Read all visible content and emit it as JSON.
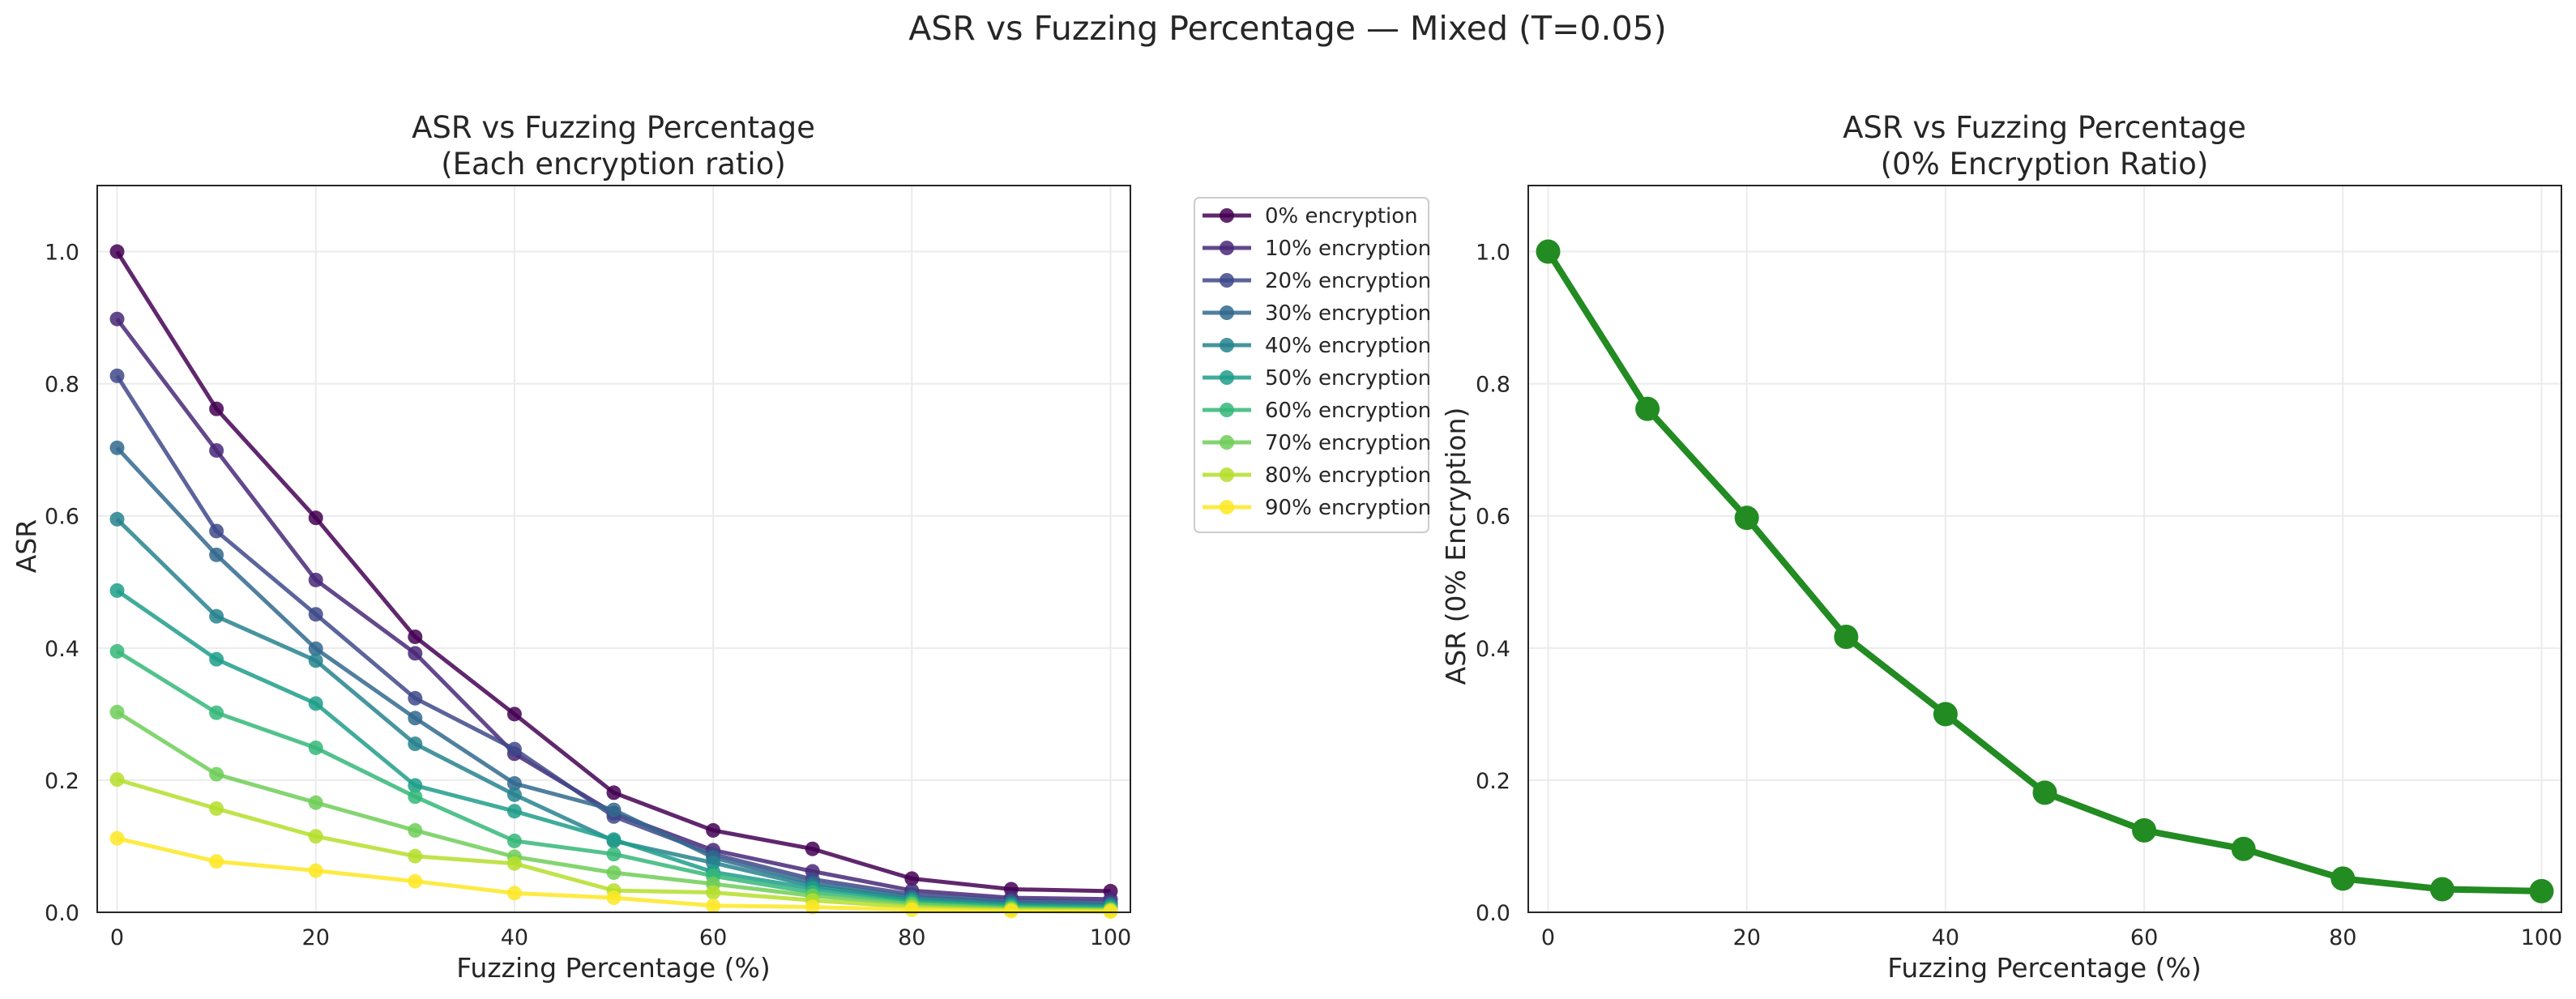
{
  "figure": {
    "suptitle": "ASR vs Fuzzing Percentage — Mixed (T=0.05)"
  },
  "chart_data": [
    {
      "type": "line",
      "title_line1": "ASR vs Fuzzing Percentage",
      "title_line2": "(Each encryption ratio)",
      "xlabel": "Fuzzing Percentage (%)",
      "ylabel": "ASR",
      "xlim": [
        -2,
        102
      ],
      "ylim": [
        0,
        1.1
      ],
      "xticks": [
        0,
        20,
        40,
        60,
        80,
        100
      ],
      "xtick_labels": [
        "0",
        "20",
        "40",
        "60",
        "80",
        "100"
      ],
      "yticks": [
        0,
        0.2,
        0.4,
        0.6,
        0.8,
        1.0
      ],
      "ytick_labels": [
        "0.0",
        "0.2",
        "0.4",
        "0.6",
        "0.8",
        "1.0"
      ],
      "grid": true,
      "legend_placement": "outside-upper-right",
      "x": [
        0,
        10,
        20,
        30,
        40,
        50,
        60,
        70,
        80,
        90,
        100
      ],
      "series": [
        {
          "name": "0% encryption",
          "color": "#440154",
          "values": [
            1.0,
            0.762,
            0.597,
            0.417,
            0.3,
            0.181,
            0.124,
            0.096,
            0.051,
            0.035,
            0.032
          ]
        },
        {
          "name": "10% encryption",
          "color": "#482878",
          "values": [
            0.898,
            0.699,
            0.503,
            0.392,
            0.24,
            0.15,
            0.094,
            0.062,
            0.033,
            0.022,
            0.02
          ]
        },
        {
          "name": "20% encryption",
          "color": "#3e4989",
          "values": [
            0.812,
            0.577,
            0.451,
            0.324,
            0.247,
            0.145,
            0.088,
            0.05,
            0.027,
            0.018,
            0.015
          ]
        },
        {
          "name": "30% encryption",
          "color": "#31688e",
          "values": [
            0.703,
            0.541,
            0.399,
            0.294,
            0.195,
            0.155,
            0.083,
            0.044,
            0.023,
            0.015,
            0.012
          ]
        },
        {
          "name": "40% encryption",
          "color": "#26828e",
          "values": [
            0.595,
            0.448,
            0.381,
            0.255,
            0.178,
            0.108,
            0.075,
            0.04,
            0.02,
            0.012,
            0.01
          ]
        },
        {
          "name": "50% encryption",
          "color": "#1f9e89",
          "values": [
            0.487,
            0.383,
            0.316,
            0.192,
            0.153,
            0.11,
            0.061,
            0.036,
            0.018,
            0.01,
            0.008
          ]
        },
        {
          "name": "60% encryption",
          "color": "#35b779",
          "values": [
            0.395,
            0.302,
            0.249,
            0.175,
            0.108,
            0.088,
            0.055,
            0.03,
            0.015,
            0.008,
            0.006
          ]
        },
        {
          "name": "70% encryption",
          "color": "#6ece58",
          "values": [
            0.303,
            0.209,
            0.166,
            0.124,
            0.084,
            0.06,
            0.043,
            0.025,
            0.012,
            0.006,
            0.004
          ]
        },
        {
          "name": "80% encryption",
          "color": "#b5de2b",
          "values": [
            0.201,
            0.157,
            0.115,
            0.085,
            0.074,
            0.033,
            0.03,
            0.018,
            0.008,
            0.004,
            0.003
          ]
        },
        {
          "name": "90% encryption",
          "color": "#fde725",
          "values": [
            0.112,
            0.077,
            0.063,
            0.047,
            0.029,
            0.022,
            0.01,
            0.008,
            0.004,
            0.002,
            0.001
          ]
        }
      ]
    },
    {
      "type": "line",
      "title_line1": "ASR vs Fuzzing Percentage",
      "title_line2": "(0% Encryption Ratio)",
      "xlabel": "Fuzzing Percentage (%)",
      "ylabel": "ASR (0% Encryption)",
      "xlim": [
        -2,
        102
      ],
      "ylim": [
        0,
        1.1
      ],
      "xticks": [
        0,
        20,
        40,
        60,
        80,
        100
      ],
      "xtick_labels": [
        "0",
        "20",
        "40",
        "60",
        "80",
        "100"
      ],
      "yticks": [
        0,
        0.2,
        0.4,
        0.6,
        0.8,
        1.0
      ],
      "ytick_labels": [
        "0.0",
        "0.2",
        "0.4",
        "0.6",
        "0.8",
        "1.0"
      ],
      "grid": true,
      "x": [
        0,
        10,
        20,
        30,
        40,
        50,
        60,
        70,
        80,
        90,
        100
      ],
      "series": [
        {
          "color": "#228b22",
          "values": [
            1.0,
            0.762,
            0.597,
            0.417,
            0.3,
            0.181,
            0.124,
            0.096,
            0.051,
            0.035,
            0.032
          ]
        }
      ]
    }
  ]
}
